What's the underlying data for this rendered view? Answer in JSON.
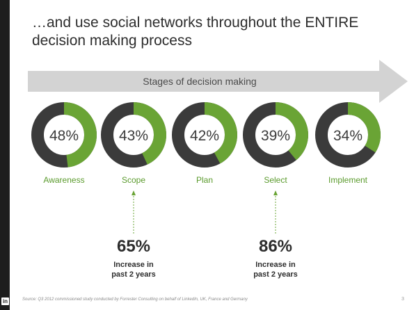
{
  "slide": {
    "title": "…and use social networks throughout the ENTIRE decision making process",
    "banner": "Stages of decision making",
    "source": "Source: Q3 2012 commissioned study conducted by Forrester Consulting on behalf of LinkedIn, UK, France and Germany",
    "page_number": "3",
    "logo_text": "in"
  },
  "chart_data": {
    "type": "donut",
    "categories": [
      "Awareness",
      "Scope",
      "Plan",
      "Select",
      "Implement"
    ],
    "values": [
      48,
      43,
      42,
      39,
      34
    ],
    "value_labels": [
      "48%",
      "43%",
      "42%",
      "39%",
      "34%"
    ],
    "ylim": [
      0,
      100
    ],
    "colors": {
      "filled": "#6aa435",
      "remainder": "#3b3b3b",
      "labels": "#5a9a2c"
    }
  },
  "callouts": [
    {
      "stage": "Scope",
      "value": "65%",
      "line1": "Increase in",
      "line2": "past 2 years"
    },
    {
      "stage": "Select",
      "value": "86%",
      "line1": "Increase in",
      "line2": "past 2 years"
    }
  ]
}
